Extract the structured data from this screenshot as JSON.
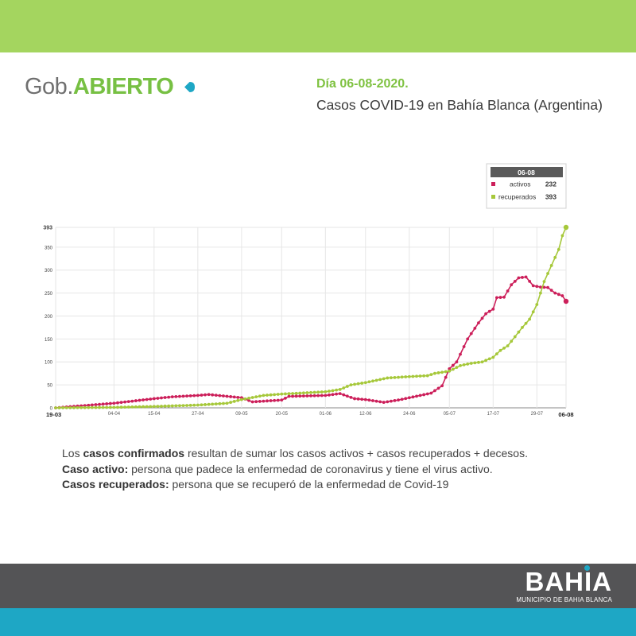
{
  "header": {
    "logo_light": "Gob.",
    "logo_bold": "ABIERTO",
    "date_line": "Día 06-08-2020.",
    "title": "Casos COVID-19 en Bahía Blanca (Argentina)"
  },
  "legend": {
    "date": "06-08",
    "items": [
      {
        "label": "activos",
        "value": "232"
      },
      {
        "label": "recuperados",
        "value": "393"
      }
    ]
  },
  "colors": {
    "activos": "#cc1f5a",
    "recuperados": "#a6c83a",
    "top_band": "#a4d55f",
    "footer_dark": "#545456",
    "footer_teal": "#1ea7c5"
  },
  "chart_data": {
    "type": "line",
    "x_range": [
      "19-03",
      "06-08"
    ],
    "x_ticks": [
      "19-03",
      "04-04",
      "15-04",
      "27-04",
      "09-05",
      "20-05",
      "01-06",
      "12-06",
      "24-06",
      "05-07",
      "17-07",
      "29-07",
      "06-08"
    ],
    "y_ticks": [
      0,
      50,
      100,
      150,
      200,
      250,
      300,
      350,
      393
    ],
    "ylim": [
      0,
      393
    ],
    "grid": true,
    "series": [
      {
        "name": "activos",
        "color": "#cc1f5a",
        "points": [
          [
            "19-03",
            0
          ],
          [
            "04-04",
            10
          ],
          [
            "15-04",
            20
          ],
          [
            "20-04",
            24
          ],
          [
            "27-04",
            27
          ],
          [
            "30-04",
            29
          ],
          [
            "09-05",
            22
          ],
          [
            "12-05",
            13
          ],
          [
            "20-05",
            17
          ],
          [
            "22-05",
            25
          ],
          [
            "01-06",
            27
          ],
          [
            "05-06",
            31
          ],
          [
            "09-06",
            20
          ],
          [
            "12-06",
            18
          ],
          [
            "17-06",
            12
          ],
          [
            "21-06",
            17
          ],
          [
            "24-06",
            22
          ],
          [
            "30-06",
            32
          ],
          [
            "03-07",
            48
          ],
          [
            "05-07",
            85
          ],
          [
            "07-07",
            100
          ],
          [
            "10-07",
            150
          ],
          [
            "13-07",
            185
          ],
          [
            "15-07",
            205
          ],
          [
            "17-07",
            215
          ],
          [
            "18-07",
            240
          ],
          [
            "20-07",
            241
          ],
          [
            "22-07",
            268
          ],
          [
            "24-07",
            283
          ],
          [
            "26-07",
            285
          ],
          [
            "28-07",
            266
          ],
          [
            "30-07",
            263
          ],
          [
            "01-08",
            262
          ],
          [
            "03-08",
            250
          ],
          [
            "05-08",
            244
          ],
          [
            "06-08",
            232
          ]
        ]
      },
      {
        "name": "recuperados",
        "color": "#a6c83a",
        "points": [
          [
            "19-03",
            0
          ],
          [
            "04-04",
            1
          ],
          [
            "15-04",
            3
          ],
          [
            "27-04",
            6
          ],
          [
            "05-05",
            10
          ],
          [
            "09-05",
            18
          ],
          [
            "15-05",
            27
          ],
          [
            "20-05",
            30
          ],
          [
            "25-05",
            32
          ],
          [
            "01-06",
            35
          ],
          [
            "05-06",
            40
          ],
          [
            "08-06",
            50
          ],
          [
            "12-06",
            55
          ],
          [
            "18-06",
            65
          ],
          [
            "24-06",
            68
          ],
          [
            "29-06",
            70
          ],
          [
            "01-07",
            75
          ],
          [
            "05-07",
            80
          ],
          [
            "08-07",
            92
          ],
          [
            "11-07",
            97
          ],
          [
            "14-07",
            100
          ],
          [
            "17-07",
            110
          ],
          [
            "19-07",
            125
          ],
          [
            "21-07",
            135
          ],
          [
            "23-07",
            155
          ],
          [
            "25-07",
            175
          ],
          [
            "27-07",
            193
          ],
          [
            "29-07",
            225
          ],
          [
            "31-07",
            275
          ],
          [
            "02-08",
            310
          ],
          [
            "04-08",
            345
          ],
          [
            "05-08",
            375
          ],
          [
            "06-08",
            393
          ]
        ]
      }
    ]
  },
  "notes": [
    {
      "prefix": "Los ",
      "bold": "casos confirmados",
      "text": " resultan de sumar los casos activos + casos recuperados + decesos."
    },
    {
      "prefix": "",
      "bold": "Caso activo:",
      "text": " persona que padece la enfermedad de coronavirus y tiene el virus activo."
    },
    {
      "prefix": "",
      "bold": "Casos recuperados:",
      "text": " persona que se recuperó de la enfermedad de Covid-19"
    }
  ],
  "footer": {
    "brand": "BAHIA",
    "subtitle": "MUNICIPIO DE BAHIA BLANCA"
  }
}
